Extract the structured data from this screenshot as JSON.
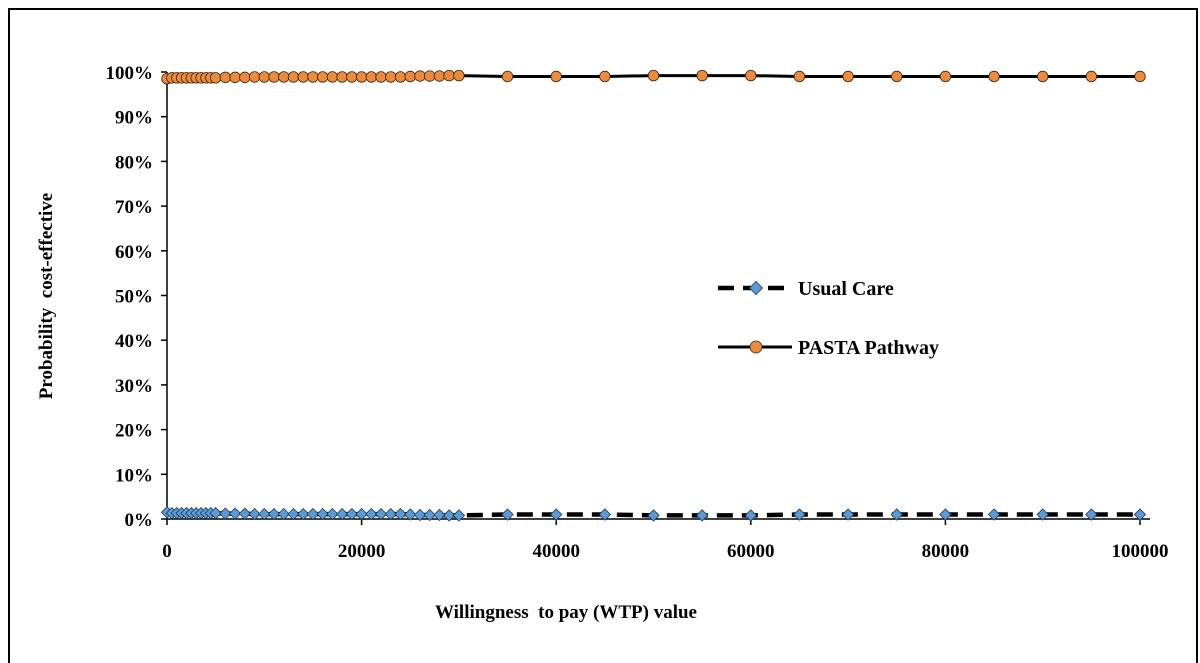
{
  "chart_data": {
    "type": "line",
    "title": "",
    "xlabel": "Willingness  to pay (WTP) value",
    "ylabel": "Probability  cost-effective",
    "xlim": [
      0,
      100000
    ],
    "ylim": [
      0,
      1
    ],
    "x_ticks": [
      0,
      20000,
      40000,
      60000,
      80000,
      100000
    ],
    "x_tick_labels": [
      "0",
      "20000",
      "40000",
      "60000",
      "80000",
      "100000"
    ],
    "y_ticks": [
      0,
      0.1,
      0.2,
      0.3,
      0.4,
      0.5,
      0.6,
      0.7,
      0.8,
      0.9,
      1.0
    ],
    "y_tick_labels": [
      "0%",
      "10%",
      "20%",
      "30%",
      "40%",
      "50%",
      "60%",
      "70%",
      "80%",
      "90%",
      "100%"
    ],
    "grid": false,
    "legend_position": "center-right",
    "x": [
      0,
      500,
      1000,
      1500,
      2000,
      2500,
      3000,
      3500,
      4000,
      4500,
      5000,
      6000,
      7000,
      8000,
      9000,
      10000,
      11000,
      12000,
      13000,
      14000,
      15000,
      16000,
      17000,
      18000,
      19000,
      20000,
      21000,
      22000,
      23000,
      24000,
      25000,
      26000,
      27000,
      28000,
      29000,
      30000,
      35000,
      40000,
      45000,
      50000,
      55000,
      60000,
      65000,
      70000,
      75000,
      80000,
      85000,
      90000,
      95000,
      100000
    ],
    "series": [
      {
        "name": "Usual Care",
        "color": "#5b9bd5",
        "line_color": "#000000",
        "line_style": "dashed",
        "marker": "diamond",
        "values": [
          0.015,
          0.013,
          0.013,
          0.013,
          0.013,
          0.013,
          0.013,
          0.013,
          0.013,
          0.013,
          0.013,
          0.012,
          0.012,
          0.012,
          0.011,
          0.011,
          0.011,
          0.011,
          0.011,
          0.011,
          0.011,
          0.011,
          0.011,
          0.011,
          0.011,
          0.011,
          0.011,
          0.011,
          0.011,
          0.011,
          0.01,
          0.009,
          0.009,
          0.009,
          0.008,
          0.008,
          0.01,
          0.01,
          0.01,
          0.008,
          0.008,
          0.008,
          0.01,
          0.01,
          0.01,
          0.01,
          0.01,
          0.01,
          0.01,
          0.01
        ]
      },
      {
        "name": "PASTA Pathway",
        "color": "#ed8b3d",
        "line_color": "#000000",
        "line_style": "solid",
        "marker": "circle",
        "values": [
          0.985,
          0.987,
          0.987,
          0.987,
          0.987,
          0.987,
          0.987,
          0.987,
          0.987,
          0.987,
          0.987,
          0.988,
          0.988,
          0.988,
          0.989,
          0.989,
          0.989,
          0.989,
          0.989,
          0.989,
          0.989,
          0.989,
          0.989,
          0.989,
          0.989,
          0.989,
          0.989,
          0.989,
          0.989,
          0.989,
          0.99,
          0.991,
          0.991,
          0.991,
          0.992,
          0.992,
          0.99,
          0.99,
          0.99,
          0.992,
          0.992,
          0.992,
          0.99,
          0.99,
          0.99,
          0.99,
          0.99,
          0.99,
          0.99,
          0.99
        ]
      }
    ]
  }
}
